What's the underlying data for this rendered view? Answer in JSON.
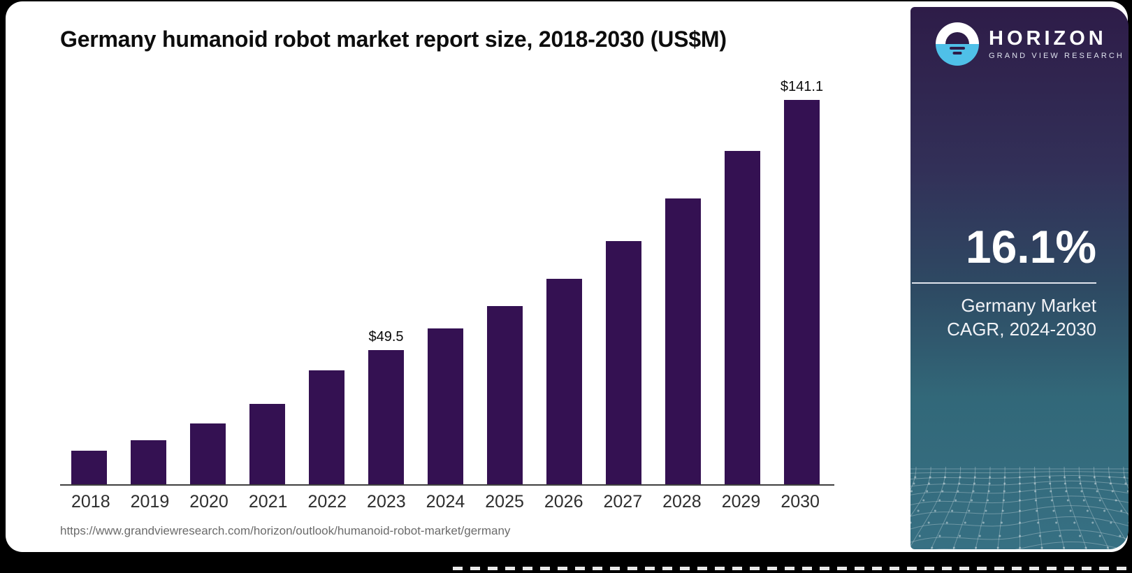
{
  "chart": {
    "title": "Germany humanoid robot market report size, 2018-2030 (US$M)",
    "source_url": "https://www.grandviewresearch.com/horizon/outlook/humanoid-robot-market/germany",
    "bar_color": "#341152",
    "axis_color": "#3f3f3f"
  },
  "chart_data": {
    "type": "bar",
    "title": "Germany humanoid robot market report size, 2018-2030 (US$M)",
    "categories": [
      "2018",
      "2019",
      "2020",
      "2021",
      "2022",
      "2023",
      "2024",
      "2025",
      "2026",
      "2027",
      "2028",
      "2029",
      "2030"
    ],
    "values": [
      12.6,
      16.4,
      22.6,
      29.8,
      41.9,
      49.5,
      57.4,
      65.6,
      75.6,
      89.4,
      105.1,
      122.3,
      141.1
    ],
    "labels": {
      "2023": "$49.5",
      "2030": "$141.1"
    },
    "xlabel": "",
    "ylabel": "US$M",
    "ylim": [
      0,
      150
    ],
    "grid": false,
    "legend": false,
    "bar_color": "#341152"
  },
  "sidebar": {
    "brand": {
      "name": "HORIZON",
      "subtitle": "GRAND VIEW RESEARCH"
    },
    "logo_colors": {
      "top_half": "#ffffff",
      "bottom_half": "#4fc0e8",
      "glyph": "#2e1c48"
    },
    "gradient": [
      "#2e1c48",
      "#323058",
      "#2e4a63",
      "#326879",
      "#377083"
    ],
    "cagr_value": "16.1%",
    "cagr_label_line1": "Germany Market",
    "cagr_label_line2": "CAGR, 2024-2030"
  }
}
